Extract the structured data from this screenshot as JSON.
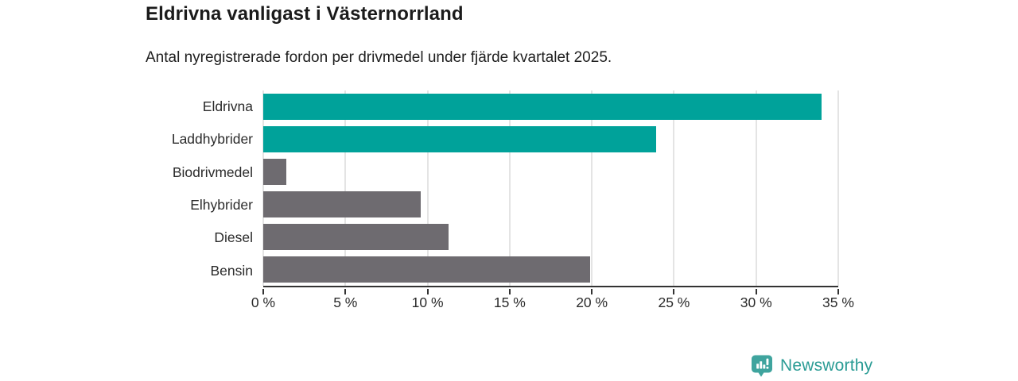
{
  "header": {
    "title": "Eldrivna vanligast i Västernorrland",
    "subtitle": "Antal nyregistrerade fordon per drivmedel under fjärde kvartalet 2025."
  },
  "chart_data": {
    "type": "bar",
    "orientation": "horizontal",
    "title": "Eldrivna vanligast i Västernorrland",
    "subtitle": "Antal nyregistrerade fordon per drivmedel under fjärde kvartalet 2025.",
    "categories": [
      "Eldrivna",
      "Laddhybrider",
      "Biodrivmedel",
      "Elhybrider",
      "Diesel",
      "Bensin"
    ],
    "values": [
      34.0,
      23.9,
      1.4,
      9.6,
      11.3,
      19.9
    ],
    "unit": "%",
    "bar_colors": [
      "#00a29a",
      "#00a29a",
      "#6e6b70",
      "#6e6b70",
      "#6e6b70",
      "#6e6b70"
    ],
    "highlight_color": "#00a29a",
    "default_color": "#6e6b70",
    "xlim": [
      0,
      35
    ],
    "x_ticks": [
      0,
      5,
      10,
      15,
      20,
      25,
      30,
      35
    ],
    "x_tick_labels": [
      "0 %",
      "5 %",
      "10 %",
      "15 %",
      "20 %",
      "25 %",
      "30 %",
      "35 %"
    ],
    "grid": true,
    "gridline_color": "#e4e4e4",
    "axis_color": "#333333",
    "legend": "none"
  },
  "footer": {
    "brand": "Newsworthy",
    "brand_color": "#2b9c95",
    "logo_icon": "bar-chart-speech-bubble-icon",
    "logo_icon_color": "#3fa49e"
  }
}
